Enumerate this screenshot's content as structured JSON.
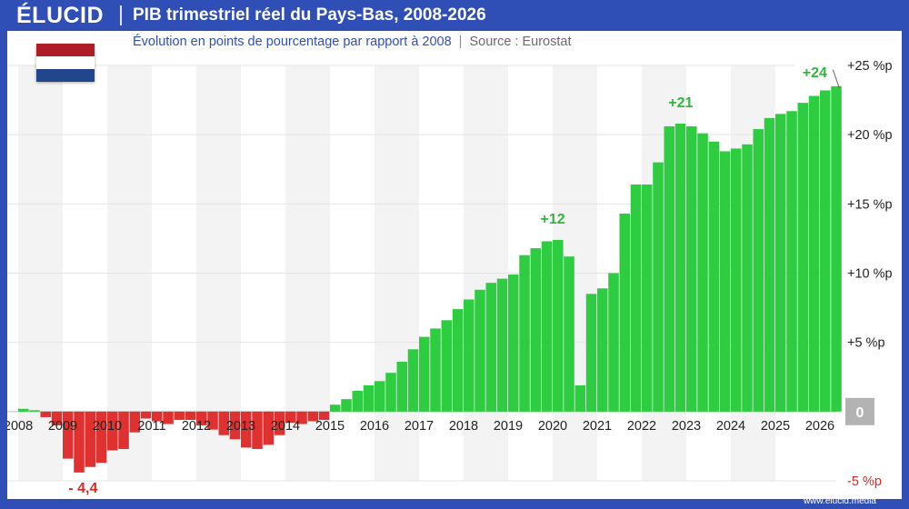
{
  "header": {
    "logo": "ÉLUCID",
    "title": "PIB trimestriel réel du Pays-Bas, 2008-2026",
    "subtitle": "Évolution en points de pourcentage par rapport à 2008",
    "source": "Source : Eurostat"
  },
  "footer": {
    "url": "www.elucid.media"
  },
  "flag": {
    "colors": [
      "#ae1c28",
      "#ffffff",
      "#21468b"
    ],
    "country": "Pays-Bas"
  },
  "colors": {
    "positive": "#2ecc40",
    "negative": "#e03131",
    "positive_label": "#2eb83a",
    "negative_label": "#d42a2a",
    "brand": "#2f4fb6"
  },
  "chart_data": {
    "type": "bar",
    "title": "PIB trimestriel réel du Pays-Bas, 2008-2026",
    "subtitle": "Évolution en points de pourcentage par rapport à 2008",
    "xlabel": "",
    "ylabel": "",
    "x_ticks": [
      "2008",
      "2009",
      "2010",
      "2011",
      "2012",
      "2013",
      "2014",
      "2015",
      "2016",
      "2017",
      "2018",
      "2019",
      "2020",
      "2021",
      "2022",
      "2023",
      "2024",
      "2025",
      "2026"
    ],
    "y_ticks": [
      "-5 %p",
      "0",
      "+5 %p",
      "+10 %p",
      "+15 %p",
      "+20 %p",
      "+25 %p"
    ],
    "ylim": [
      -5,
      25
    ],
    "grid": true,
    "quarters_start": "2008-Q1",
    "values": [
      0.2,
      0.1,
      -0.4,
      -1.0,
      -3.4,
      -4.4,
      -4.0,
      -3.7,
      -2.8,
      -2.7,
      -1.5,
      -0.5,
      -0.7,
      -0.9,
      -0.6,
      -0.6,
      -1.0,
      -1.3,
      -1.7,
      -2.0,
      -2.6,
      -2.7,
      -2.4,
      -1.7,
      -0.8,
      -0.9,
      -0.7,
      -0.6,
      0.5,
      0.9,
      1.5,
      1.9,
      2.2,
      2.8,
      3.6,
      4.5,
      5.4,
      6.0,
      6.6,
      7.4,
      8.1,
      8.8,
      9.3,
      9.6,
      9.9,
      11.3,
      11.8,
      12.3,
      12.4,
      11.2,
      1.9,
      8.5,
      8.9,
      10.0,
      14.3,
      16.4,
      16.4,
      18.0,
      20.6,
      20.8,
      20.6,
      20.1,
      19.5,
      18.8,
      19.0,
      19.3,
      20.4,
      21.2,
      21.5,
      21.7,
      22.3,
      22.8,
      23.2,
      23.5
    ],
    "annotations": [
      {
        "label": "- 4,4",
        "index": 5,
        "value": -4.4
      },
      {
        "label": "+12",
        "index": 48,
        "value": 12.4
      },
      {
        "label": "+21",
        "index": 59,
        "value": 20.8
      },
      {
        "label": "+24",
        "index": 73,
        "value": 23.5
      }
    ]
  }
}
